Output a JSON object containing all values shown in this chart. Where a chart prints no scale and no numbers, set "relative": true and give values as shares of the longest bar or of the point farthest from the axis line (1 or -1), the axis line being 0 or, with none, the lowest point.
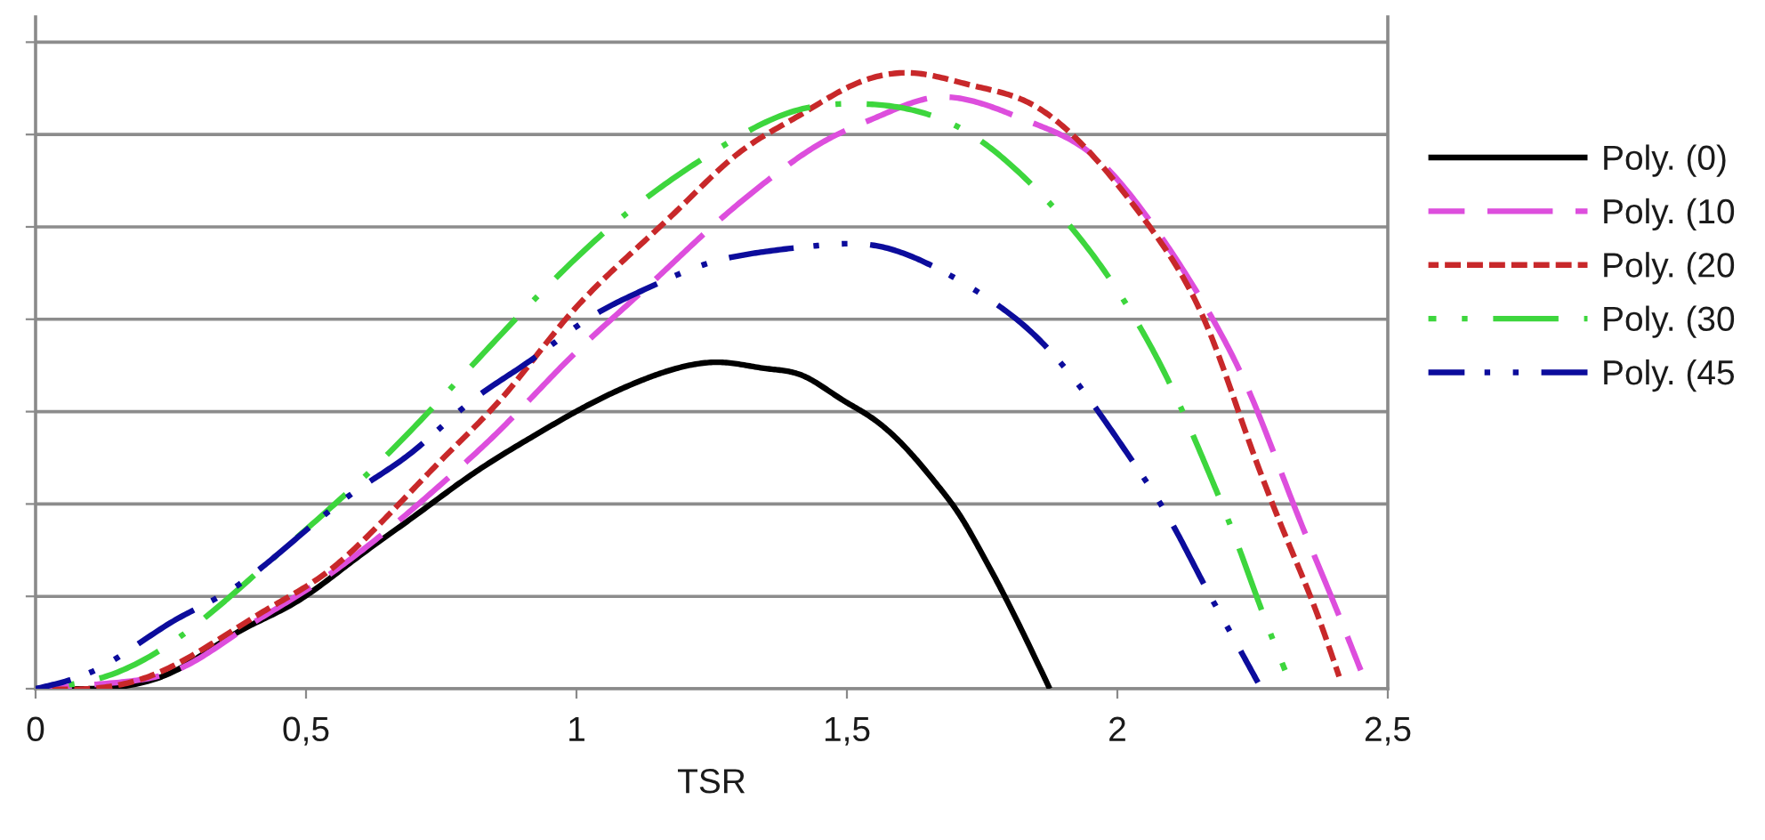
{
  "chart_data": {
    "type": "line",
    "relative": true,
    "xlabel": "TSR",
    "xlim": [
      0,
      2.5
    ],
    "xticks": [
      0,
      {
        "value": 0.5,
        "label": "0,5"
      },
      1,
      {
        "value": 1.5,
        "label": "1,5"
      },
      2,
      {
        "value": 2.5,
        "label": "2,5"
      }
    ],
    "grid": "y",
    "legend": "right",
    "marker": "none",
    "series": [
      {
        "name": "Poly. (0)",
        "color": "#000000",
        "line_style": "solid",
        "x": [
          0,
          0.1,
          0.26,
          0.37,
          0.48,
          0.59,
          0.7,
          0.81,
          0.92,
          1.02,
          1.118,
          1.184,
          1.27,
          1.35,
          1.414,
          1.49,
          1.546,
          1.61,
          1.668,
          1.71,
          1.743,
          1.786,
          1.875
        ],
        "values": [
          0,
          0,
          0.03,
          0.09,
          0.14,
          0.21,
          0.28,
          0.35,
          0.41,
          0.46,
          0.5,
          0.52,
          0.53,
          0.52,
          0.51,
          0.47,
          0.44,
          0.39,
          0.33,
          0.28,
          0.23,
          0.16,
          0
        ]
      },
      {
        "name": "Poly. (10",
        "color": "#dd4edd",
        "line_style": "long_dash",
        "x": [
          0,
          0.15,
          0.26,
          0.39,
          0.5,
          0.64,
          0.76,
          0.87,
          0.98,
          1.14,
          1.25,
          1.36,
          1.46,
          1.56,
          1.66,
          1.75,
          1.84,
          1.95,
          2.06,
          2.17,
          2.24,
          2.33,
          2.4,
          2.45
        ],
        "values": [
          0,
          0.01,
          0.03,
          0.1,
          0.16,
          0.25,
          0.34,
          0.43,
          0.53,
          0.66,
          0.75,
          0.83,
          0.89,
          0.93,
          0.96,
          0.95,
          0.92,
          0.87,
          0.76,
          0.61,
          0.49,
          0.29,
          0.14,
          0.03
        ]
      },
      {
        "name": "Poly. (20",
        "color": "#c8282a",
        "line_style": "dashed",
        "x": [
          0,
          0.1,
          0.21,
          0.32,
          0.43,
          0.54,
          0.65,
          0.76,
          0.87,
          0.98,
          1.08,
          1.19,
          1.3,
          1.41,
          1.51,
          1.62,
          1.73,
          1.84,
          1.95,
          2.06,
          2.17,
          2.24,
          2.31,
          2.37,
          2.41
        ],
        "values": [
          0,
          0,
          0.02,
          0.07,
          0.13,
          0.19,
          0.28,
          0.38,
          0.48,
          0.6,
          0.69,
          0.78,
          0.87,
          0.93,
          0.98,
          1,
          0.98,
          0.95,
          0.87,
          0.75,
          0.58,
          0.41,
          0.25,
          0.12,
          0.02
        ]
      },
      {
        "name": "Poly. (30",
        "color": "#3dd63d",
        "line_style": "long_dash_dot",
        "x": [
          0,
          0.13,
          0.26,
          0.45,
          0.615,
          0.77,
          0.92,
          1.09,
          1.25,
          1.41,
          1.51,
          1.62,
          1.73,
          1.84,
          1.95,
          2.04,
          2.1,
          2.16,
          2.22,
          2.27,
          2.31
        ],
        "values": [
          0,
          0.02,
          0.08,
          0.22,
          0.35,
          0.49,
          0.63,
          0.77,
          0.87,
          0.94,
          0.95,
          0.94,
          0.9,
          0.82,
          0.71,
          0.59,
          0.49,
          0.37,
          0.24,
          0.12,
          0.03
        ]
      },
      {
        "name": "Poly. (45",
        "color": "#0c0c9c",
        "line_style": "long_dash_dot_dot",
        "x": [
          0,
          0.11,
          0.255,
          0.36,
          0.45,
          0.59,
          0.69,
          0.81,
          0.91,
          1.02,
          1.13,
          1.24,
          1.35,
          1.45,
          1.55,
          1.65,
          1.75,
          1.84,
          1.94,
          2.02,
          2.1,
          2.16,
          2.21,
          2.26
        ],
        "values": [
          0,
          0.03,
          0.11,
          0.16,
          0.22,
          0.32,
          0.38,
          0.47,
          0.53,
          0.6,
          0.65,
          0.69,
          0.71,
          0.72,
          0.72,
          0.69,
          0.64,
          0.58,
          0.48,
          0.38,
          0.27,
          0.17,
          0.09,
          0.01
        ]
      }
    ]
  }
}
